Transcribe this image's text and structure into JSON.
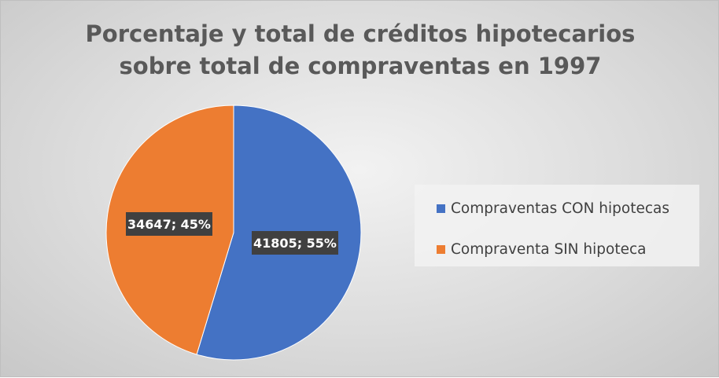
{
  "title_lines": [
    "Porcentaje y total de créditos hipotecarios",
    "sobre total de compraventas en 1997"
  ],
  "chart_data": {
    "type": "pie",
    "title": "Porcentaje y total de créditos hipotecarios sobre total de compraventas en 1997",
    "slices": [
      {
        "name": "Compraventas CON hipotecas",
        "value": 41805,
        "percent": 55,
        "label": "41805; 55%",
        "color": "#4472c4"
      },
      {
        "name": "Compraventa SIN hipoteca",
        "value": 34647,
        "percent": 45,
        "label": "34647; 45%",
        "color": "#ed7d31"
      }
    ],
    "legend_position": "right"
  },
  "colors": {
    "title": "#595959",
    "data_label_bg": "#404040",
    "data_label_text": "#ffffff"
  }
}
